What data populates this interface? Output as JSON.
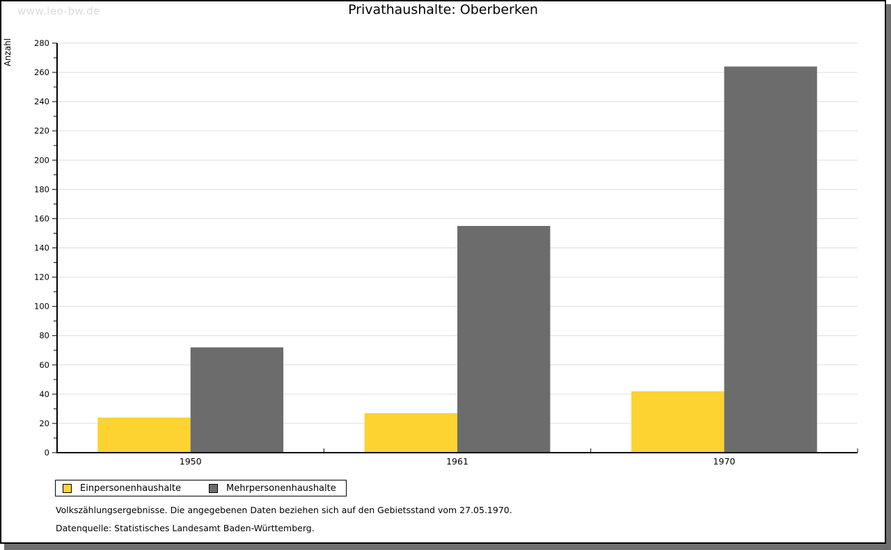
{
  "page": {
    "watermark": "www.leo-bw.de",
    "title": "Privathaushalte: Oberberken"
  },
  "chart_data": {
    "type": "bar",
    "title": "Privathaushalte: Oberberken",
    "xlabel": "",
    "ylabel": "Anzahl",
    "categories": [
      "1950",
      "1961",
      "1970"
    ],
    "series": [
      {
        "name": "Einpersonenhaushalte",
        "color": "#FCD330",
        "values": [
          24,
          27,
          42
        ]
      },
      {
        "name": "Mehrpersonenhaushalte",
        "color": "#6C6C6C",
        "values": [
          72,
          155,
          264
        ]
      }
    ],
    "ylim": [
      0,
      280
    ],
    "ytick_step": 20,
    "yminor_step": 10,
    "grid": true,
    "legend_position": "bottom-left"
  },
  "footer": {
    "line1": "Volkszählungsergebnisse. Die angegebenen Daten beziehen sich auf den Gebietsstand vom 27.05.1970.",
    "line2": "Datenquelle: Statistisches Landesamt Baden-Württemberg."
  },
  "colors": {
    "grid": "#DDDDDD",
    "axis": "#000000",
    "shadow": "#6E6E6E",
    "watermark": "#DCDCDC"
  }
}
